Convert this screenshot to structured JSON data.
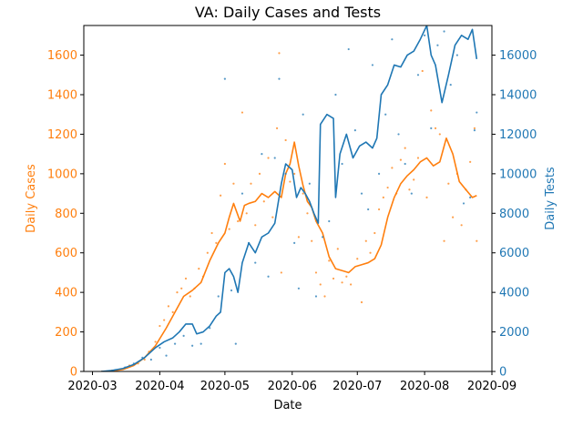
{
  "chart_data": {
    "type": "line",
    "title": "VA: Daily Cases and Tests",
    "xlabel": "Date",
    "x_ticks": [
      "2020-03",
      "2020-04",
      "2020-05",
      "2020-06",
      "2020-07",
      "2020-08",
      "2020-09"
    ],
    "x_range": [
      "2020-02-26",
      "2020-09-01"
    ],
    "left_axis": {
      "label": "Daily Cases",
      "color": "#ff7f0e",
      "ylim": [
        0,
        1750
      ],
      "ticks": [
        0,
        200,
        400,
        600,
        800,
        1000,
        1200,
        1400,
        1600
      ]
    },
    "right_axis": {
      "label": "Daily Tests",
      "color": "#1f77b4",
      "ylim": [
        0,
        17500
      ],
      "ticks": [
        0,
        2000,
        4000,
        6000,
        8000,
        10000,
        12000,
        14000,
        16000
      ]
    },
    "series": [
      {
        "axis": "left",
        "color": "#ff7f0e",
        "smoothed": [
          [
            "2020-03-05",
            0
          ],
          [
            "2020-03-10",
            2
          ],
          [
            "2020-03-15",
            10
          ],
          [
            "2020-03-20",
            30
          ],
          [
            "2020-03-25",
            70
          ],
          [
            "2020-03-30",
            130
          ],
          [
            "2020-04-04",
            220
          ],
          [
            "2020-04-08",
            300
          ],
          [
            "2020-04-12",
            380
          ],
          [
            "2020-04-16",
            410
          ],
          [
            "2020-04-20",
            450
          ],
          [
            "2020-04-24",
            560
          ],
          [
            "2020-04-28",
            650
          ],
          [
            "2020-05-01",
            700
          ],
          [
            "2020-05-03",
            780
          ],
          [
            "2020-05-05",
            850
          ],
          [
            "2020-05-08",
            760
          ],
          [
            "2020-05-10",
            840
          ],
          [
            "2020-05-12",
            850
          ],
          [
            "2020-05-15",
            860
          ],
          [
            "2020-05-18",
            900
          ],
          [
            "2020-05-21",
            880
          ],
          [
            "2020-05-24",
            910
          ],
          [
            "2020-05-27",
            880
          ],
          [
            "2020-05-29",
            1000
          ],
          [
            "2020-05-31",
            1050
          ],
          [
            "2020-06-02",
            1160
          ],
          [
            "2020-06-04",
            1040
          ],
          [
            "2020-06-06",
            940
          ],
          [
            "2020-06-08",
            860
          ],
          [
            "2020-06-10",
            830
          ],
          [
            "2020-06-12",
            760
          ],
          [
            "2020-06-15",
            700
          ],
          [
            "2020-06-18",
            580
          ],
          [
            "2020-06-21",
            520
          ],
          [
            "2020-06-24",
            510
          ],
          [
            "2020-06-27",
            500
          ],
          [
            "2020-06-30",
            530
          ],
          [
            "2020-07-03",
            540
          ],
          [
            "2020-07-06",
            550
          ],
          [
            "2020-07-09",
            570
          ],
          [
            "2020-07-12",
            640
          ],
          [
            "2020-07-15",
            780
          ],
          [
            "2020-07-18",
            880
          ],
          [
            "2020-07-21",
            950
          ],
          [
            "2020-07-24",
            990
          ],
          [
            "2020-07-27",
            1020
          ],
          [
            "2020-07-30",
            1060
          ],
          [
            "2020-08-02",
            1080
          ],
          [
            "2020-08-05",
            1040
          ],
          [
            "2020-08-08",
            1060
          ],
          [
            "2020-08-11",
            1180
          ],
          [
            "2020-08-14",
            1100
          ],
          [
            "2020-08-17",
            960
          ],
          [
            "2020-08-20",
            920
          ],
          [
            "2020-08-23",
            880
          ],
          [
            "2020-08-25",
            890
          ]
        ],
        "daily": [
          [
            "2020-03-10",
            5
          ],
          [
            "2020-03-14",
            10
          ],
          [
            "2020-03-18",
            30
          ],
          [
            "2020-03-22",
            40
          ],
          [
            "2020-03-25",
            60
          ],
          [
            "2020-03-27",
            100
          ],
          [
            "2020-03-30",
            150
          ],
          [
            "2020-04-01",
            230
          ],
          [
            "2020-04-03",
            260
          ],
          [
            "2020-04-05",
            330
          ],
          [
            "2020-04-07",
            300
          ],
          [
            "2020-04-09",
            400
          ],
          [
            "2020-04-11",
            420
          ],
          [
            "2020-04-13",
            470
          ],
          [
            "2020-04-15",
            380
          ],
          [
            "2020-04-17",
            420
          ],
          [
            "2020-04-19",
            520
          ],
          [
            "2020-04-21",
            480
          ],
          [
            "2020-04-23",
            600
          ],
          [
            "2020-04-25",
            700
          ],
          [
            "2020-04-27",
            650
          ],
          [
            "2020-04-29",
            890
          ],
          [
            "2020-05-01",
            1050
          ],
          [
            "2020-05-03",
            720
          ],
          [
            "2020-05-05",
            950
          ],
          [
            "2020-05-07",
            760
          ],
          [
            "2020-05-09",
            1310
          ],
          [
            "2020-05-11",
            800
          ],
          [
            "2020-05-13",
            950
          ],
          [
            "2020-05-15",
            740
          ],
          [
            "2020-05-17",
            1000
          ],
          [
            "2020-05-19",
            860
          ],
          [
            "2020-05-21",
            1080
          ],
          [
            "2020-05-23",
            780
          ],
          [
            "2020-05-25",
            1230
          ],
          [
            "2020-05-26",
            1610
          ],
          [
            "2020-05-27",
            500
          ],
          [
            "2020-05-29",
            1170
          ],
          [
            "2020-05-31",
            960
          ],
          [
            "2020-06-02",
            1000
          ],
          [
            "2020-06-04",
            680
          ],
          [
            "2020-06-06",
            900
          ],
          [
            "2020-06-08",
            800
          ],
          [
            "2020-06-10",
            660
          ],
          [
            "2020-06-12",
            500
          ],
          [
            "2020-06-14",
            440
          ],
          [
            "2020-06-16",
            380
          ],
          [
            "2020-06-18",
            560
          ],
          [
            "2020-06-20",
            470
          ],
          [
            "2020-06-22",
            620
          ],
          [
            "2020-06-24",
            450
          ],
          [
            "2020-06-26",
            480
          ],
          [
            "2020-06-28",
            440
          ],
          [
            "2020-07-01",
            570
          ],
          [
            "2020-07-03",
            350
          ],
          [
            "2020-07-05",
            660
          ],
          [
            "2020-07-07",
            600
          ],
          [
            "2020-07-09",
            700
          ],
          [
            "2020-07-11",
            820
          ],
          [
            "2020-07-13",
            880
          ],
          [
            "2020-07-15",
            930
          ],
          [
            "2020-07-17",
            1030
          ],
          [
            "2020-07-19",
            900
          ],
          [
            "2020-07-21",
            1070
          ],
          [
            "2020-07-23",
            1130
          ],
          [
            "2020-07-25",
            920
          ],
          [
            "2020-07-27",
            970
          ],
          [
            "2020-07-29",
            1080
          ],
          [
            "2020-07-31",
            1520
          ],
          [
            "2020-08-02",
            880
          ],
          [
            "2020-08-04",
            1320
          ],
          [
            "2020-08-06",
            1230
          ],
          [
            "2020-08-08",
            1200
          ],
          [
            "2020-08-10",
            660
          ],
          [
            "2020-08-12",
            950
          ],
          [
            "2020-08-14",
            780
          ],
          [
            "2020-08-16",
            1000
          ],
          [
            "2020-08-18",
            740
          ],
          [
            "2020-08-20",
            920
          ],
          [
            "2020-08-22",
            1060
          ],
          [
            "2020-08-24",
            1230
          ],
          [
            "2020-08-25",
            660
          ]
        ]
      },
      {
        "axis": "right",
        "color": "#1f77b4",
        "smoothed": [
          [
            "2020-03-05",
            0
          ],
          [
            "2020-03-10",
            50
          ],
          [
            "2020-03-15",
            150
          ],
          [
            "2020-03-20",
            350
          ],
          [
            "2020-03-25",
            700
          ],
          [
            "2020-03-30",
            1200
          ],
          [
            "2020-04-03",
            1500
          ],
          [
            "2020-04-07",
            1700
          ],
          [
            "2020-04-10",
            2000
          ],
          [
            "2020-04-13",
            2400
          ],
          [
            "2020-04-16",
            2400
          ],
          [
            "2020-04-18",
            1900
          ],
          [
            "2020-04-21",
            2000
          ],
          [
            "2020-04-24",
            2300
          ],
          [
            "2020-04-27",
            2800
          ],
          [
            "2020-04-29",
            3000
          ],
          [
            "2020-05-01",
            5000
          ],
          [
            "2020-05-03",
            5200
          ],
          [
            "2020-05-05",
            4800
          ],
          [
            "2020-05-07",
            4000
          ],
          [
            "2020-05-09",
            5500
          ],
          [
            "2020-05-12",
            6500
          ],
          [
            "2020-05-15",
            6000
          ],
          [
            "2020-05-18",
            6800
          ],
          [
            "2020-05-21",
            7000
          ],
          [
            "2020-05-24",
            7500
          ],
          [
            "2020-05-27",
            9500
          ],
          [
            "2020-05-29",
            10500
          ],
          [
            "2020-06-01",
            10200
          ],
          [
            "2020-06-03",
            8800
          ],
          [
            "2020-06-05",
            9300
          ],
          [
            "2020-06-07",
            9000
          ],
          [
            "2020-06-09",
            8600
          ],
          [
            "2020-06-11",
            8000
          ],
          [
            "2020-06-13",
            7500
          ],
          [
            "2020-06-14",
            12500
          ],
          [
            "2020-06-17",
            13000
          ],
          [
            "2020-06-20",
            12800
          ],
          [
            "2020-06-21",
            8800
          ],
          [
            "2020-06-23",
            11000
          ],
          [
            "2020-06-26",
            12000
          ],
          [
            "2020-06-29",
            10800
          ],
          [
            "2020-07-02",
            11400
          ],
          [
            "2020-07-05",
            11600
          ],
          [
            "2020-07-08",
            11300
          ],
          [
            "2020-07-10",
            11800
          ],
          [
            "2020-07-12",
            14000
          ],
          [
            "2020-07-15",
            14500
          ],
          [
            "2020-07-18",
            15500
          ],
          [
            "2020-07-21",
            15400
          ],
          [
            "2020-07-24",
            16000
          ],
          [
            "2020-07-27",
            16200
          ],
          [
            "2020-07-30",
            16800
          ],
          [
            "2020-08-02",
            17500
          ],
          [
            "2020-08-04",
            16000
          ],
          [
            "2020-08-06",
            15500
          ],
          [
            "2020-08-09",
            13600
          ],
          [
            "2020-08-12",
            15000
          ],
          [
            "2020-08-15",
            16500
          ],
          [
            "2020-08-18",
            17000
          ],
          [
            "2020-08-21",
            16800
          ],
          [
            "2020-08-23",
            17300
          ],
          [
            "2020-08-25",
            15800
          ]
        ],
        "daily": [
          [
            "2020-03-16",
            200
          ],
          [
            "2020-03-20",
            400
          ],
          [
            "2020-03-24",
            700
          ],
          [
            "2020-03-28",
            600
          ],
          [
            "2020-04-01",
            1200
          ],
          [
            "2020-04-04",
            800
          ],
          [
            "2020-04-08",
            1400
          ],
          [
            "2020-04-12",
            1800
          ],
          [
            "2020-04-16",
            1300
          ],
          [
            "2020-04-20",
            1400
          ],
          [
            "2020-04-24",
            2200
          ],
          [
            "2020-04-28",
            3800
          ],
          [
            "2020-05-01",
            14800
          ],
          [
            "2020-05-04",
            4100
          ],
          [
            "2020-05-06",
            1400
          ],
          [
            "2020-05-09",
            9000
          ],
          [
            "2020-05-12",
            6500
          ],
          [
            "2020-05-15",
            5500
          ],
          [
            "2020-05-18",
            11000
          ],
          [
            "2020-05-21",
            4800
          ],
          [
            "2020-05-24",
            10800
          ],
          [
            "2020-05-26",
            14800
          ],
          [
            "2020-05-29",
            10000
          ],
          [
            "2020-06-02",
            6500
          ],
          [
            "2020-06-04",
            4200
          ],
          [
            "2020-06-06",
            13000
          ],
          [
            "2020-06-09",
            9500
          ],
          [
            "2020-06-12",
            3800
          ],
          [
            "2020-06-15",
            6800
          ],
          [
            "2020-06-18",
            7600
          ],
          [
            "2020-06-21",
            14000
          ],
          [
            "2020-06-24",
            10500
          ],
          [
            "2020-06-27",
            16300
          ],
          [
            "2020-06-30",
            12200
          ],
          [
            "2020-07-03",
            9000
          ],
          [
            "2020-07-06",
            8200
          ],
          [
            "2020-07-08",
            15500
          ],
          [
            "2020-07-11",
            10000
          ],
          [
            "2020-07-14",
            13000
          ],
          [
            "2020-07-17",
            16800
          ],
          [
            "2020-07-20",
            12000
          ],
          [
            "2020-07-23",
            10500
          ],
          [
            "2020-07-26",
            9000
          ],
          [
            "2020-07-29",
            15000
          ],
          [
            "2020-08-01",
            17000
          ],
          [
            "2020-08-04",
            12300
          ],
          [
            "2020-08-07",
            16500
          ],
          [
            "2020-08-10",
            17200
          ],
          [
            "2020-08-13",
            14500
          ],
          [
            "2020-08-16",
            16000
          ],
          [
            "2020-08-19",
            8500
          ],
          [
            "2020-08-22",
            8800
          ],
          [
            "2020-08-24",
            12200
          ],
          [
            "2020-08-25",
            13100
          ]
        ]
      }
    ]
  }
}
